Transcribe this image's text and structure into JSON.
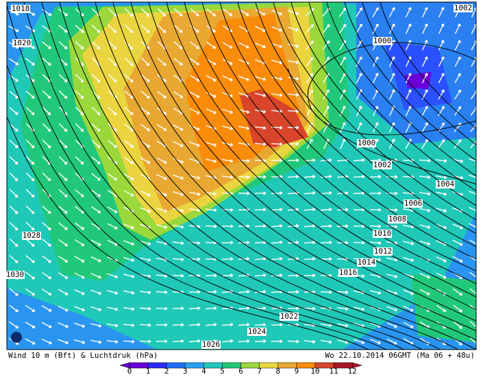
{
  "map": {
    "footer": {
      "left": "Wind  10 m (Bft) & Luchtdruk (hPa)",
      "right": "Wo  22.10.2014  06GMT  (Ma 06 + 48u)"
    },
    "isobar_labels": [
      "1018",
      "1020",
      "1000",
      "1002",
      "1000",
      "1002",
      "1004",
      "1006",
      "1008",
      "1010",
      "1012",
      "1014",
      "1016",
      "1028",
      "1030",
      "1022",
      "1024",
      "1026"
    ],
    "legend": {
      "labels": [
        "0",
        "1",
        "2",
        "3",
        "4",
        "5",
        "6",
        "7",
        "8",
        "9",
        "10",
        "11",
        "12"
      ],
      "colors": [
        "#6a00d8",
        "#2a2aff",
        "#1f6ff5",
        "#2aa0f0",
        "#20c8c0",
        "#22c87a",
        "#9ad83c",
        "#ead540",
        "#e8a832",
        "#f98c0a",
        "#d8452a",
        "#a81628"
      ]
    }
  }
}
